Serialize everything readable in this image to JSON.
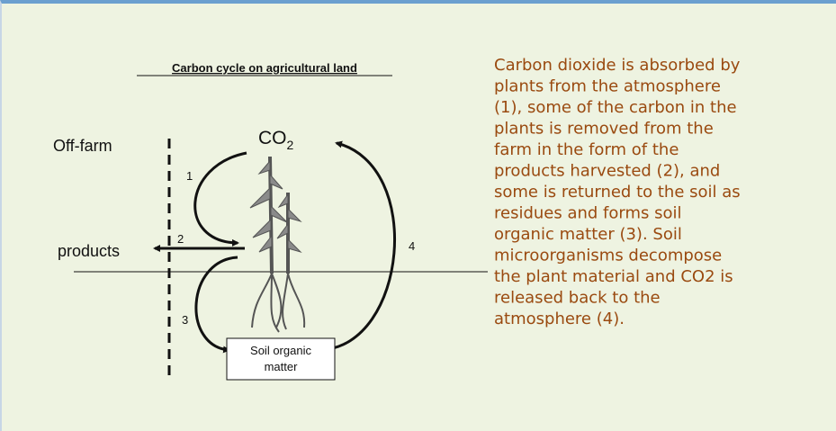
{
  "diagram": {
    "title": "Carbon cycle on agricultural land",
    "off_farm": "Off-farm",
    "co2": {
      "base": "CO",
      "sub": "2"
    },
    "products": "products",
    "steps": [
      "1",
      "2",
      "3",
      "4"
    ],
    "soil_box": [
      "Soil organic",
      "matter"
    ]
  },
  "description": {
    "lines": [
      "Carbon dioxide is absorbed by",
      "plants from the atmosphere",
      "(1), some of the carbon in the",
      "plants is removed from the",
      "farm in the form of the",
      "products harvested (2), and",
      "some is returned to the soil as",
      "residues and forms soil",
      "organic matter (3).  Soil",
      "microorganisms decompose",
      "the plant material and CO2 is",
      "released back to the",
      "atmosphere (4)."
    ]
  }
}
